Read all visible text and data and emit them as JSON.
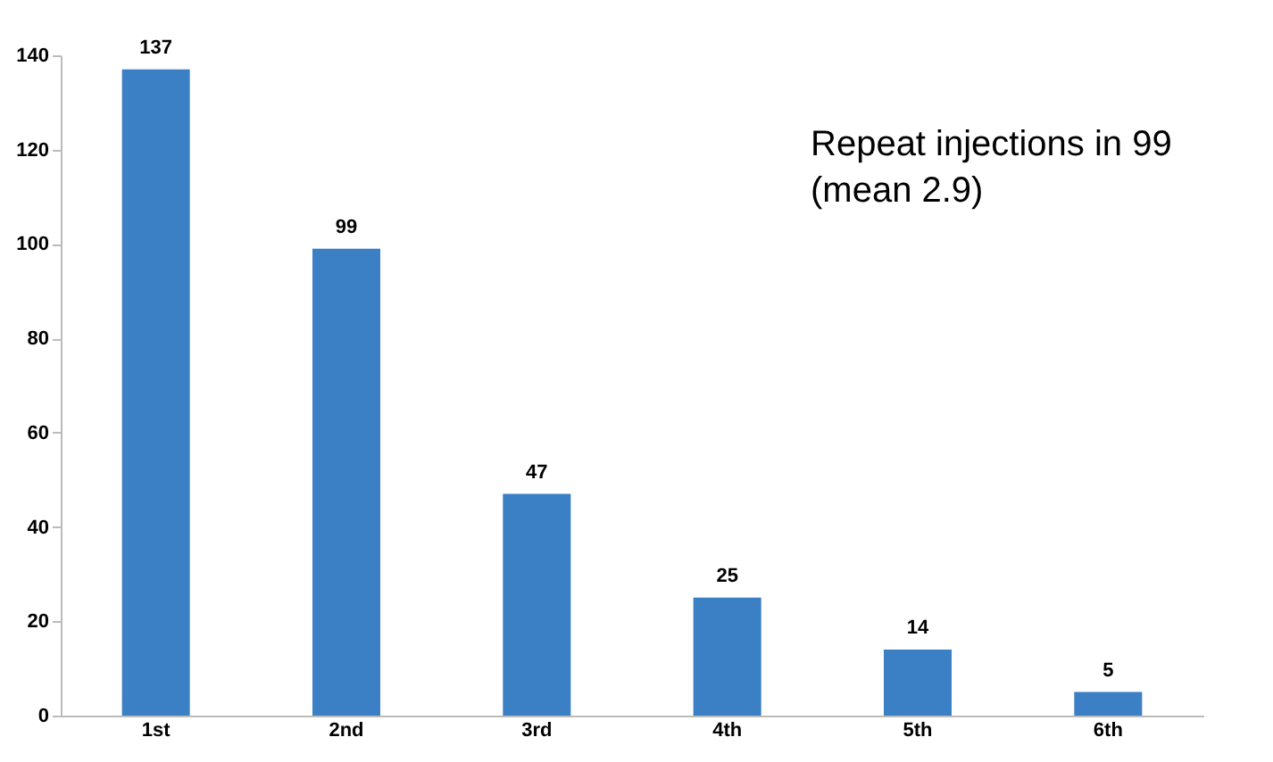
{
  "chart_data": {
    "type": "bar",
    "categories": [
      "1st",
      "2nd",
      "3rd",
      "4th",
      "5th",
      "6th"
    ],
    "values": [
      137,
      99,
      47,
      25,
      14,
      5
    ],
    "color": "#3b7fc4",
    "ylim": [
      0,
      140
    ],
    "yticks": [
      0,
      20,
      40,
      60,
      80,
      100,
      120,
      140
    ],
    "grid": false,
    "data_labels": true,
    "annotations": [
      "Repeat injections in 99\n(mean 2.9)"
    ]
  }
}
